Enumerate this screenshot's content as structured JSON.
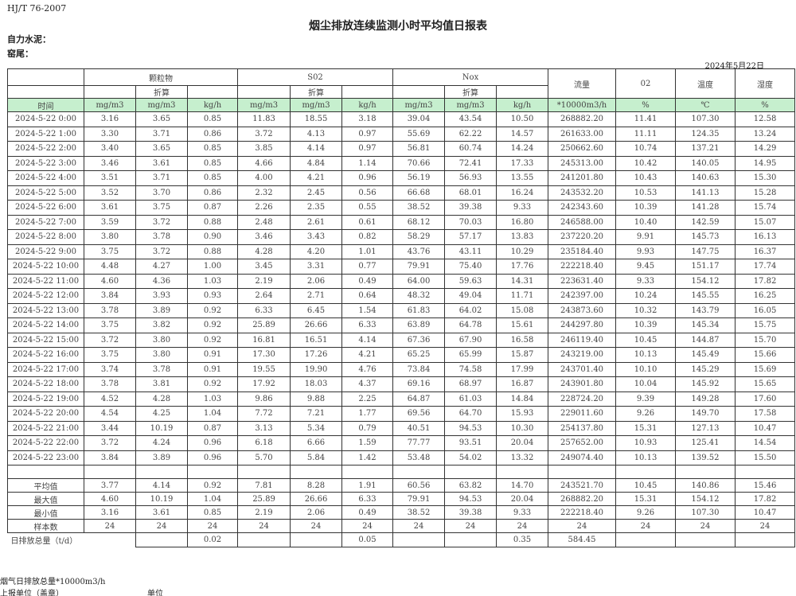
{
  "header": {
    "standard": "HJ/T  76-2007",
    "title": "烟尘排放连续监测小时平均值日报表",
    "company": "自力水泥：",
    "kiln": "窑尾：",
    "date": "2024年5月22日"
  },
  "table": {
    "groups": [
      "颗粒物",
      "S02",
      "Nox"
    ],
    "converted_label": "折算",
    "single_headers": [
      "流量",
      "02",
      "温度",
      "湿度"
    ],
    "units": [
      "时间",
      "mg/m3",
      "mg/m3",
      "kg/h",
      "mg/m3",
      "mg/m3",
      "kg/h",
      "mg/m3",
      "mg/m3",
      "kg/h",
      "*10000m3/h",
      "%",
      "℃",
      "%"
    ],
    "rows": [
      [
        "2024-5-22 0:00",
        "3.16",
        "3.65",
        "0.85",
        "11.83",
        "18.55",
        "3.18",
        "39.04",
        "43.54",
        "10.50",
        "268882.20",
        "11.41",
        "107.30",
        "12.58"
      ],
      [
        "2024-5-22 1:00",
        "3.30",
        "3.71",
        "0.86",
        "3.72",
        "4.13",
        "0.97",
        "55.69",
        "62.22",
        "14.57",
        "261633.00",
        "11.11",
        "124.35",
        "13.24"
      ],
      [
        "2024-5-22 2:00",
        "3.40",
        "3.65",
        "0.85",
        "3.85",
        "4.14",
        "0.97",
        "56.81",
        "60.74",
        "14.24",
        "250662.60",
        "10.74",
        "137.21",
        "14.29"
      ],
      [
        "2024-5-22 3:00",
        "3.46",
        "3.61",
        "0.85",
        "4.66",
        "4.84",
        "1.14",
        "70.66",
        "72.41",
        "17.33",
        "245313.00",
        "10.42",
        "140.05",
        "14.95"
      ],
      [
        "2024-5-22 4:00",
        "3.51",
        "3.71",
        "0.85",
        "4.00",
        "4.21",
        "0.96",
        "56.19",
        "56.93",
        "13.55",
        "241201.80",
        "10.43",
        "140.63",
        "15.30"
      ],
      [
        "2024-5-22 5:00",
        "3.52",
        "3.70",
        "0.86",
        "2.32",
        "2.45",
        "0.56",
        "66.68",
        "68.01",
        "16.24",
        "243532.20",
        "10.53",
        "141.13",
        "15.28"
      ],
      [
        "2024-5-22 6:00",
        "3.61",
        "3.75",
        "0.87",
        "2.26",
        "2.35",
        "0.55",
        "38.52",
        "39.38",
        "9.33",
        "242343.60",
        "10.39",
        "141.28",
        "15.74"
      ],
      [
        "2024-5-22 7:00",
        "3.59",
        "3.72",
        "0.88",
        "2.48",
        "2.61",
        "0.61",
        "68.12",
        "70.03",
        "16.80",
        "246588.00",
        "10.40",
        "142.59",
        "15.07"
      ],
      [
        "2024-5-22 8:00",
        "3.80",
        "3.78",
        "0.90",
        "3.46",
        "3.43",
        "0.82",
        "58.29",
        "57.17",
        "13.83",
        "237220.20",
        "9.91",
        "145.73",
        "16.13"
      ],
      [
        "2024-5-22 9:00",
        "3.75",
        "3.72",
        "0.88",
        "4.28",
        "4.20",
        "1.01",
        "43.76",
        "43.11",
        "10.29",
        "235184.40",
        "9.93",
        "147.75",
        "16.37"
      ],
      [
        "2024-5-22 10:00",
        "4.48",
        "4.27",
        "1.00",
        "3.45",
        "3.31",
        "0.77",
        "79.91",
        "75.40",
        "17.76",
        "222218.40",
        "9.45",
        "151.17",
        "17.74"
      ],
      [
        "2024-5-22 11:00",
        "4.60",
        "4.36",
        "1.03",
        "2.19",
        "2.06",
        "0.49",
        "64.00",
        "59.63",
        "14.31",
        "223631.40",
        "9.33",
        "154.12",
        "17.82"
      ],
      [
        "2024-5-22 12:00",
        "3.84",
        "3.93",
        "0.93",
        "2.64",
        "2.71",
        "0.64",
        "48.32",
        "49.04",
        "11.71",
        "242397.00",
        "10.24",
        "145.55",
        "16.25"
      ],
      [
        "2024-5-22 13:00",
        "3.78",
        "3.89",
        "0.92",
        "6.33",
        "6.45",
        "1.54",
        "61.83",
        "64.02",
        "15.08",
        "243873.60",
        "10.32",
        "143.79",
        "16.05"
      ],
      [
        "2024-5-22 14:00",
        "3.75",
        "3.82",
        "0.92",
        "25.89",
        "26.66",
        "6.33",
        "63.89",
        "64.78",
        "15.61",
        "244297.80",
        "10.39",
        "145.34",
        "15.75"
      ],
      [
        "2024-5-22 15:00",
        "3.72",
        "3.80",
        "0.92",
        "16.81",
        "16.51",
        "4.14",
        "67.36",
        "67.90",
        "16.58",
        "246119.40",
        "10.45",
        "144.87",
        "15.70"
      ],
      [
        "2024-5-22 16:00",
        "3.75",
        "3.80",
        "0.91",
        "17.30",
        "17.26",
        "4.21",
        "65.25",
        "65.99",
        "15.87",
        "243219.00",
        "10.13",
        "145.49",
        "15.66"
      ],
      [
        "2024-5-22 17:00",
        "3.74",
        "3.78",
        "0.91",
        "19.55",
        "19.90",
        "4.76",
        "73.84",
        "74.58",
        "17.99",
        "243701.40",
        "10.10",
        "145.29",
        "15.69"
      ],
      [
        "2024-5-22 18:00",
        "3.78",
        "3.81",
        "0.92",
        "17.92",
        "18.03",
        "4.37",
        "69.16",
        "68.97",
        "16.87",
        "243901.80",
        "10.04",
        "145.92",
        "15.65"
      ],
      [
        "2024-5-22 19:00",
        "4.52",
        "4.28",
        "1.03",
        "9.86",
        "9.88",
        "2.25",
        "64.87",
        "61.03",
        "14.84",
        "228724.20",
        "9.39",
        "149.28",
        "17.60"
      ],
      [
        "2024-5-22 20:00",
        "4.54",
        "4.25",
        "1.04",
        "7.72",
        "7.21",
        "1.77",
        "69.56",
        "64.70",
        "15.93",
        "229011.60",
        "9.26",
        "149.70",
        "17.58"
      ],
      [
        "2024-5-22 21:00",
        "3.44",
        "10.19",
        "0.87",
        "3.13",
        "5.34",
        "0.79",
        "40.51",
        "94.53",
        "10.30",
        "254137.80",
        "15.31",
        "127.13",
        "10.47"
      ],
      [
        "2024-5-22 22:00",
        "3.72",
        "4.24",
        "0.96",
        "6.18",
        "6.66",
        "1.59",
        "77.77",
        "93.51",
        "20.04",
        "257652.00",
        "10.93",
        "125.41",
        "14.54"
      ],
      [
        "2024-5-22 23:00",
        "3.84",
        "3.89",
        "0.96",
        "5.70",
        "5.84",
        "1.42",
        "53.48",
        "54.02",
        "13.32",
        "249074.40",
        "10.13",
        "139.52",
        "15.50"
      ]
    ],
    "stats": [
      [
        "平均值",
        "3.77",
        "4.14",
        "0.92",
        "7.81",
        "8.28",
        "1.91",
        "60.56",
        "63.82",
        "14.70",
        "243521.70",
        "10.45",
        "140.86",
        "15.46"
      ],
      [
        "最大值",
        "4.60",
        "10.19",
        "1.04",
        "25.89",
        "26.66",
        "6.33",
        "79.91",
        "94.53",
        "20.04",
        "268882.20",
        "15.31",
        "154.12",
        "17.82"
      ],
      [
        "最小值",
        "3.16",
        "3.61",
        "0.85",
        "2.19",
        "2.06",
        "0.49",
        "38.52",
        "39.38",
        "9.33",
        "222218.40",
        "9.26",
        "107.30",
        "10.47"
      ],
      [
        "样本数",
        "24",
        "24",
        "24",
        "24",
        "24",
        "24",
        "24",
        "24",
        "24",
        "24",
        "24",
        "24",
        "24"
      ]
    ],
    "total": {
      "label": "日排放总量（t/d）",
      "values": [
        "",
        "0.02",
        "",
        "",
        "0.05",
        "",
        "",
        "0.35",
        "584.45",
        "",
        "",
        ""
      ]
    }
  },
  "footer": {
    "flue_gas_total": "烟气日排放总量*10000m3/h",
    "reporting_unit": "上报单位（盖章）",
    "unit": "单位"
  }
}
